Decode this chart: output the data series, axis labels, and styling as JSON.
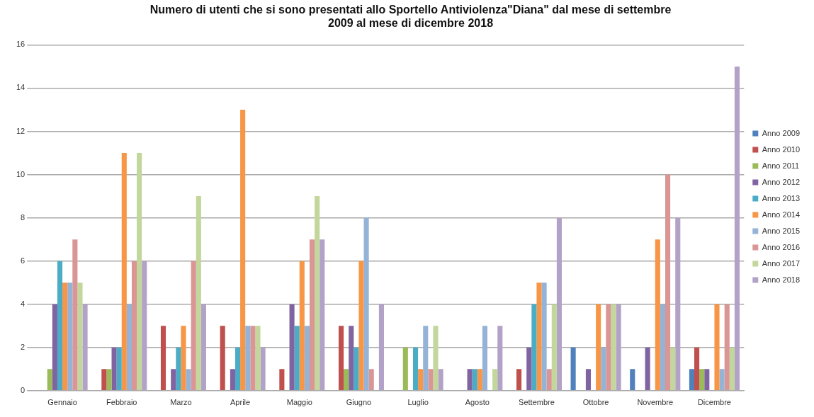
{
  "chart_data": {
    "type": "bar",
    "title": "Numero di utenti che si sono presentati allo Sportello Antiviolenza\"Diana\" dal mese di settembre 2009 al mese di dicembre 2018",
    "categories": [
      "Gennaio",
      "Febbraio",
      "Marzo",
      "Aprile",
      "Maggio",
      "Giugno",
      "Luglio",
      "Agosto",
      "Settembre",
      "Ottobre",
      "Novembre",
      "Dicembre"
    ],
    "series": [
      {
        "name": "Anno 2009",
        "color": "#4f81bd",
        "values": [
          0,
          0,
          0,
          0,
          0,
          0,
          0,
          0,
          0,
          2,
          1,
          1
        ]
      },
      {
        "name": "Anno 2010",
        "color": "#c0504d",
        "values": [
          0,
          1,
          3,
          3,
          1,
          3,
          0,
          0,
          1,
          0,
          0,
          2
        ]
      },
      {
        "name": "Anno 2011",
        "color": "#9bbb59",
        "values": [
          1,
          1,
          0,
          0,
          0,
          1,
          2,
          0,
          0,
          0,
          0,
          1
        ]
      },
      {
        "name": "Anno 2012",
        "color": "#8064a2",
        "values": [
          4,
          2,
          1,
          1,
          4,
          3,
          0,
          1,
          2,
          1,
          2,
          1
        ]
      },
      {
        "name": "Anno 2013",
        "color": "#4bacc6",
        "values": [
          6,
          2,
          2,
          2,
          3,
          2,
          2,
          1,
          4,
          0,
          0,
          0
        ]
      },
      {
        "name": "Anno 2014",
        "color": "#f79646",
        "values": [
          5,
          11,
          3,
          13,
          6,
          6,
          1,
          1,
          5,
          4,
          7,
          4
        ]
      },
      {
        "name": "Anno 2015",
        "color": "#95b3d7",
        "values": [
          5,
          4,
          1,
          3,
          3,
          8,
          3,
          3,
          5,
          2,
          4,
          1
        ]
      },
      {
        "name": "Anno 2016",
        "color": "#d99694",
        "values": [
          7,
          6,
          6,
          3,
          7,
          1,
          1,
          0,
          1,
          4,
          10,
          4
        ]
      },
      {
        "name": "Anno 2017",
        "color": "#c3d69b",
        "values": [
          5,
          11,
          9,
          3,
          9,
          0,
          3,
          1,
          4,
          4,
          2,
          2
        ]
      },
      {
        "name": "Anno 2018",
        "color": "#b3a2c7",
        "values": [
          4,
          6,
          4,
          2,
          7,
          4,
          1,
          3,
          8,
          4,
          8,
          15
        ]
      }
    ],
    "ylim": [
      0,
      16
    ],
    "yticks": [
      0,
      2,
      4,
      6,
      8,
      10,
      12,
      14,
      16
    ],
    "grid": "y",
    "legend": "right"
  }
}
